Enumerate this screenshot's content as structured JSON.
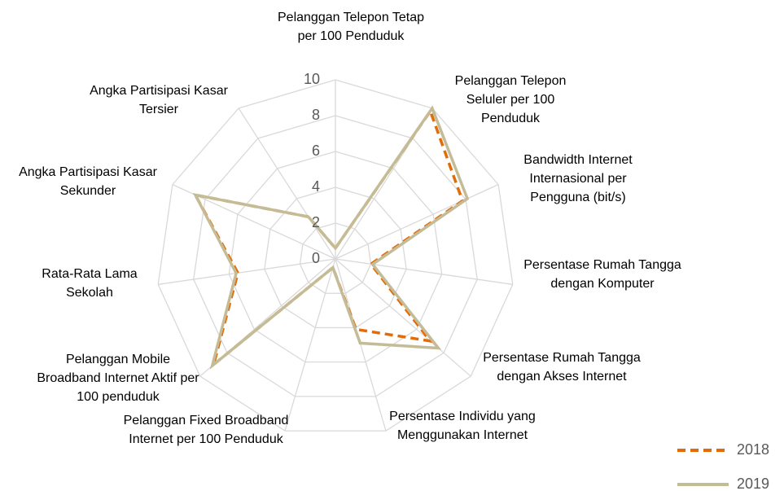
{
  "chart_data": {
    "type": "radar",
    "categories": [
      "Pelanggan Telepon Tetap per 100 Penduduk",
      "Pelanggan  Telepon Seluler per 100 Penduduk",
      "Bandwidth Internet Internasional per Pengguna (bit/s)",
      "Persentase Rumah Tangga dengan Komputer",
      "Persentase Rumah Tangga dengan Akses Internet",
      "Persentase Individu yang Menggunakan Internet",
      "Pelanggan Fixed Broadband Internet per 100 Penduduk",
      "Pelanggan Mobile Broadband Internet Aktif per 100 penduduk",
      "Rata-Rata Lama Sekolah",
      "Angka Partisipasi Kasar Sekunder",
      "Angka Partisipasi Kasar Tersier"
    ],
    "series": [
      {
        "name": "2018",
        "color": "#e36c0a",
        "dash": true,
        "values": [
          0.6,
          9.8,
          7.8,
          2.0,
          7.0,
          4.1,
          0.5,
          9.0,
          5.5,
          8.6,
          2.8
        ]
      },
      {
        "name": "2019",
        "color": "#c4bc96",
        "dash": false,
        "values": [
          0.6,
          10,
          8.1,
          2.1,
          7.6,
          4.9,
          0.5,
          9.1,
          5.6,
          8.6,
          2.8
        ]
      }
    ],
    "ylim": [
      0,
      10
    ],
    "yticks": [
      0,
      2,
      4,
      6,
      8,
      10
    ],
    "grid": true,
    "legend": "bottom-right"
  }
}
